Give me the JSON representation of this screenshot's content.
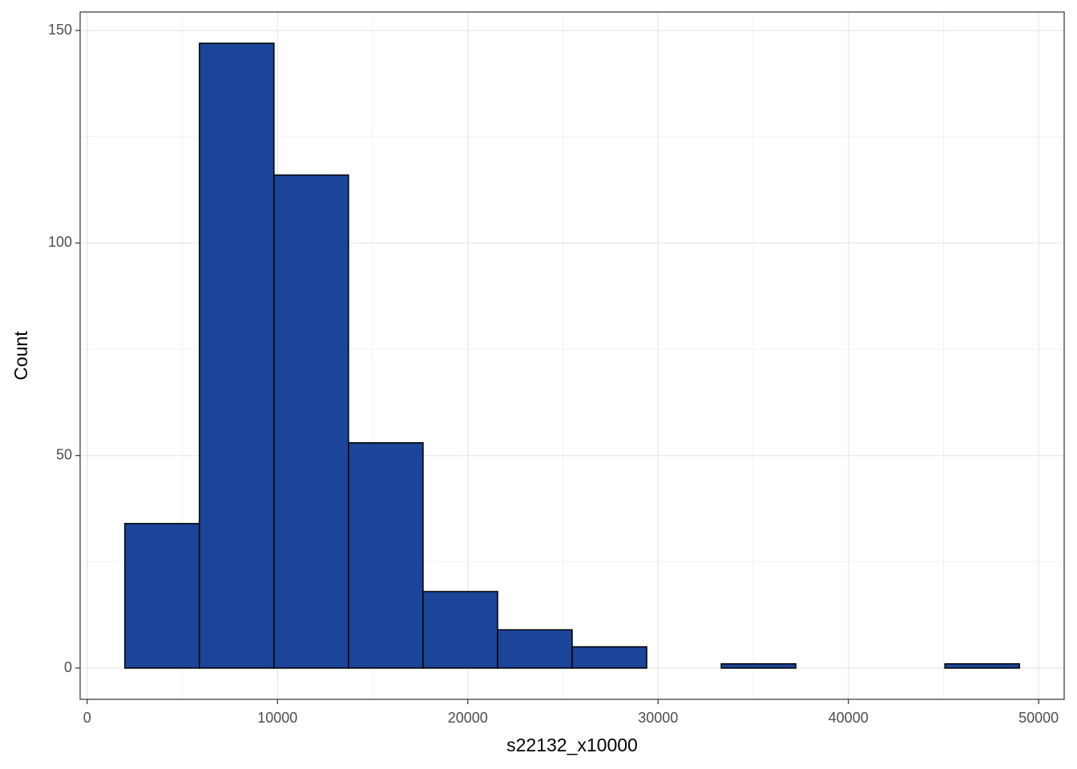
{
  "chart_data": {
    "type": "histogram",
    "x_label": "s22132_x10000",
    "y_label": "Count",
    "bins": [
      1980,
      5897.5,
      9815,
      13732.5,
      17650,
      21567.5,
      25485,
      29402.5,
      33320,
      37237.5,
      41155,
      45072.5,
      48990
    ],
    "counts": [
      34,
      147,
      116,
      53,
      18,
      9,
      5,
      0,
      1,
      0,
      0,
      1
    ],
    "color": "#1a4599",
    "edge_color": "#000000",
    "xlim": [
      -370.5,
      51340.5
    ],
    "ylim": [
      -7.35,
      154.35
    ],
    "xticks": [
      0,
      10000,
      20000,
      30000,
      40000,
      50000
    ],
    "yticks": [
      0,
      50,
      100,
      150
    ],
    "minor_xticks": [
      5000,
      15000,
      25000,
      35000,
      45000
    ],
    "minor_yticks": [
      25,
      75,
      125
    ],
    "grid": true
  }
}
